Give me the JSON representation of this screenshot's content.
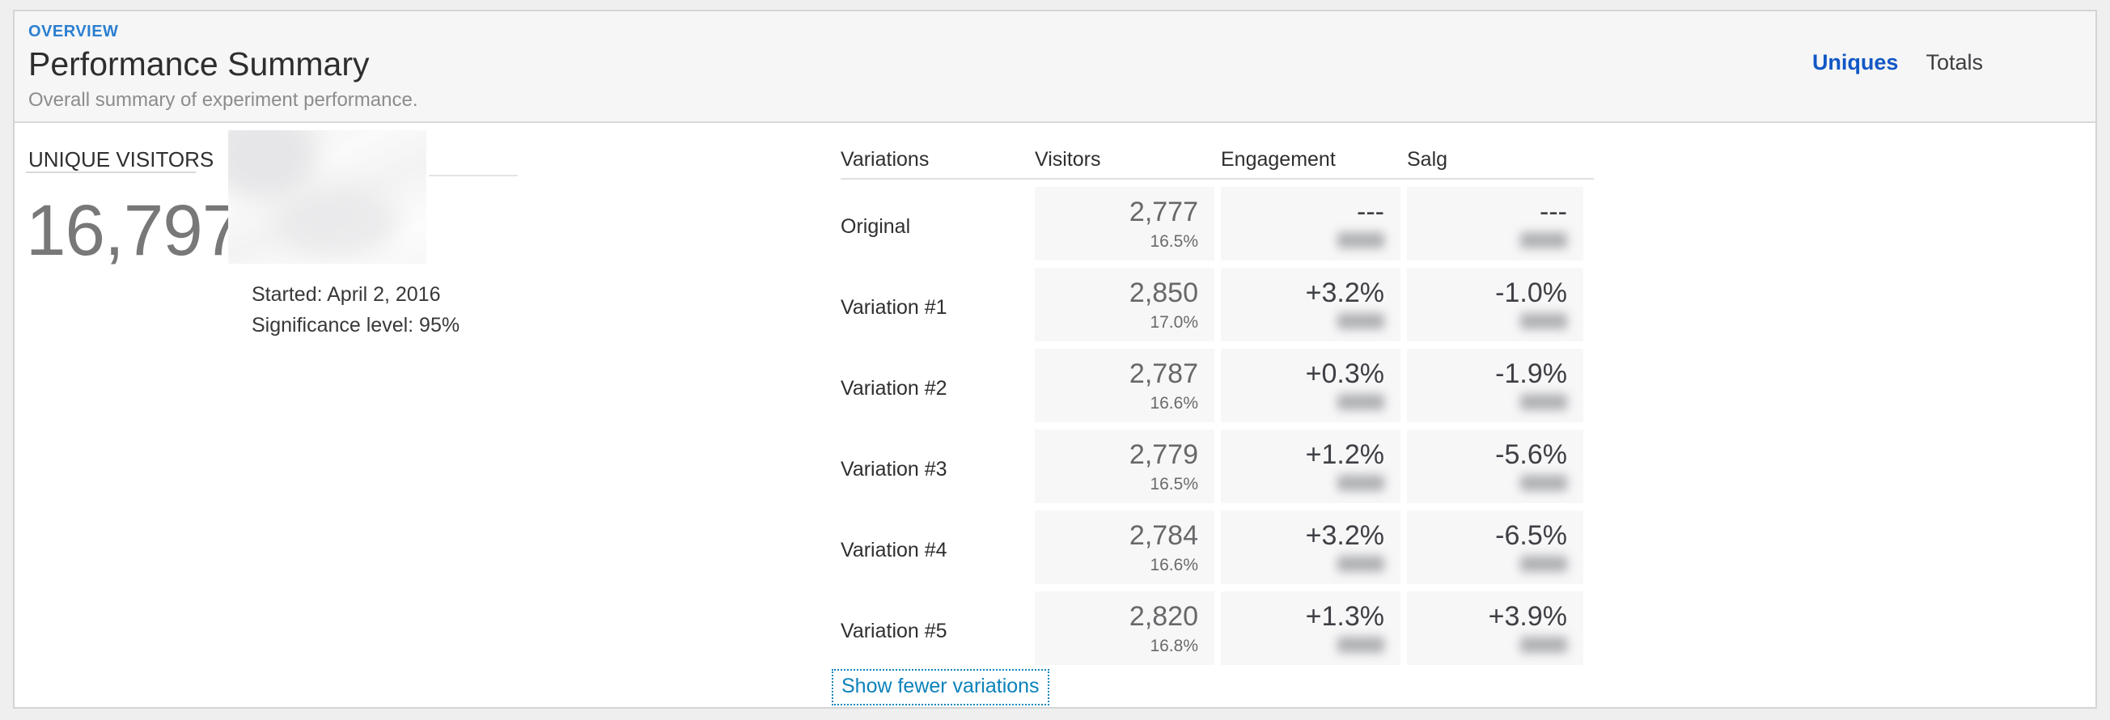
{
  "header": {
    "eyebrow": "OVERVIEW",
    "title": "Performance Summary",
    "subtitle": "Overall summary of experiment performance.",
    "toggle": {
      "options": [
        {
          "label": "Uniques",
          "active": true
        },
        {
          "label": "Totals",
          "active": false
        }
      ]
    }
  },
  "summary": {
    "metric_label": "UNIQUE VISITORS",
    "metric_value": "16,797",
    "started": "Started: April 2, 2016",
    "significance": "Significance level: 95%",
    "thumbnail_redacted": true
  },
  "table": {
    "columns": [
      "Variations",
      "Visitors",
      "Engagement",
      "Salg"
    ],
    "rows": [
      {
        "name": "Original",
        "visitors": "2,777",
        "visitors_rate": "16.5%",
        "engagement": "---",
        "engagement_sub_redacted": true,
        "salg": "---",
        "salg_sub_redacted": true
      },
      {
        "name": "Variation #1",
        "visitors": "2,850",
        "visitors_rate": "17.0%",
        "engagement": "+3.2%",
        "engagement_sub_redacted": true,
        "salg": "-1.0%",
        "salg_sub_redacted": true
      },
      {
        "name": "Variation #2",
        "visitors": "2,787",
        "visitors_rate": "16.6%",
        "engagement": "+0.3%",
        "engagement_sub_redacted": true,
        "salg": "-1.9%",
        "salg_sub_redacted": true
      },
      {
        "name": "Variation #3",
        "visitors": "2,779",
        "visitors_rate": "16.5%",
        "engagement": "+1.2%",
        "engagement_sub_redacted": true,
        "salg": "-5.6%",
        "salg_sub_redacted": true
      },
      {
        "name": "Variation #4",
        "visitors": "2,784",
        "visitors_rate": "16.6%",
        "engagement": "+3.2%",
        "engagement_sub_redacted": true,
        "salg": "-6.5%",
        "salg_sub_redacted": true
      },
      {
        "name": "Variation #5",
        "visitors": "2,820",
        "visitors_rate": "16.8%",
        "engagement": "+1.3%",
        "engagement_sub_redacted": true,
        "salg": "+3.9%",
        "salg_sub_redacted": true
      }
    ],
    "footer_link": "Show fewer variations"
  },
  "colors": {
    "eyebrow_blue": "#2b7fd0",
    "selected_toggle_blue": "#1257c5",
    "link_blue": "#0c82ba",
    "cell_background": "#f7f7f8",
    "header_band_background": "#f6f6f7"
  }
}
